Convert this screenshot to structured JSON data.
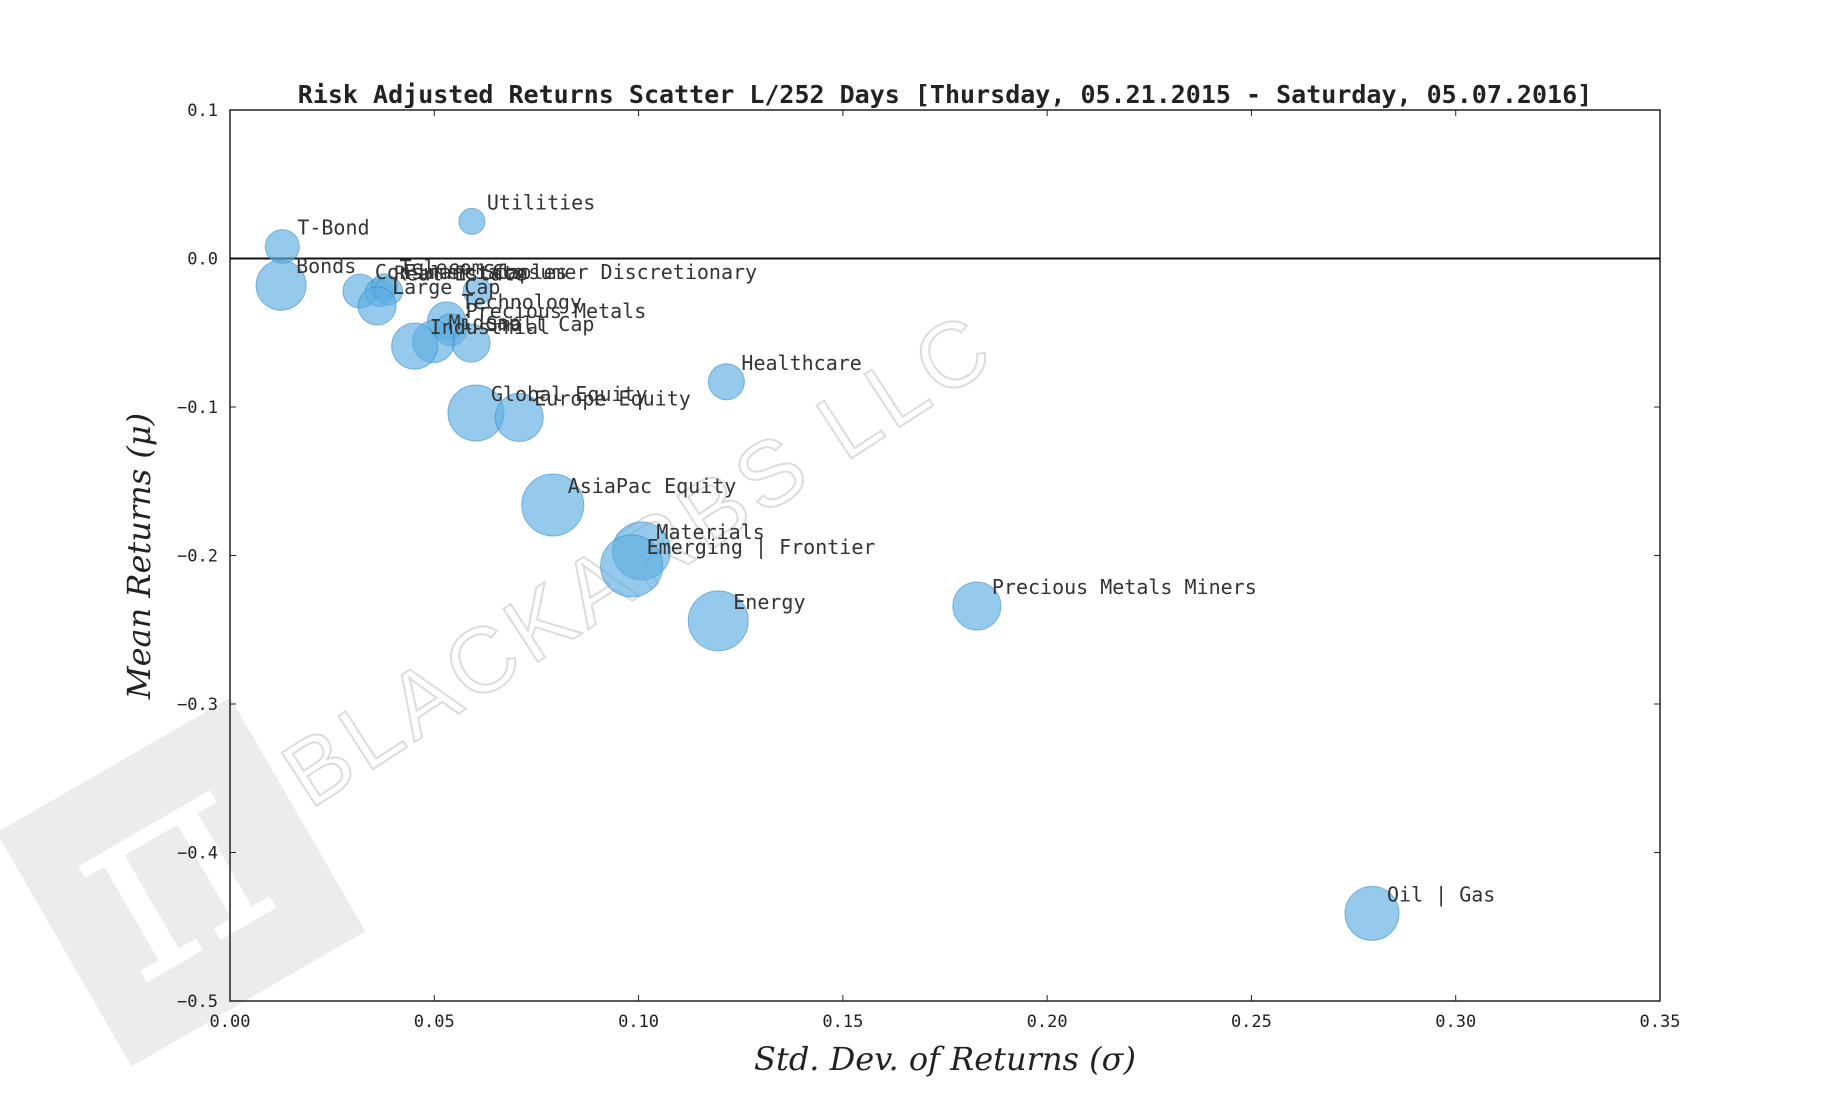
{
  "chart_data": {
    "type": "scatter",
    "title": "Risk Adjusted Returns Scatter L/252 Days [Thursday, 05.21.2015 - Saturday, 05.07.2016]",
    "xlabel": "Std.  Dev.  of  Returns   (σ)",
    "ylabel": "Mean  Returns   (μ)",
    "xlim": [
      0.0,
      0.35
    ],
    "ylim": [
      -0.5,
      0.1
    ],
    "x_ticks": [
      0.0,
      0.05,
      0.1,
      0.15,
      0.2,
      0.25,
      0.3,
      0.35
    ],
    "x_tick_labels": [
      "0.00",
      "0.05",
      "0.10",
      "0.15",
      "0.20",
      "0.25",
      "0.30",
      "0.35"
    ],
    "y_ticks": [
      0.1,
      0.0,
      -0.1,
      -0.2,
      -0.3,
      -0.4,
      -0.5
    ],
    "y_tick_labels": [
      "0.1",
      "0.0",
      "−0.1",
      "−0.2",
      "−0.3",
      "−0.4",
      "−0.5"
    ],
    "zero_line": 0.0,
    "grid": false,
    "marker_color": "#5DADE2",
    "points": [
      {
        "label": "Utilities",
        "x": 0.0592,
        "y": 0.025,
        "size": 13
      },
      {
        "label": "T-Bond",
        "x": 0.0128,
        "y": 0.008,
        "size": 17
      },
      {
        "label": "Bonds",
        "x": 0.0125,
        "y": -0.018,
        "size": 25
      },
      {
        "label": "Consumer Staples",
        "x": 0.0318,
        "y": -0.022,
        "size": 17
      },
      {
        "label": "Real Estate",
        "x": 0.0365,
        "y": -0.023,
        "size": 14
      },
      {
        "label": "Telecom",
        "x": 0.0378,
        "y": -0.019,
        "size": 13
      },
      {
        "label": "Financials",
        "x": 0.0388,
        "y": -0.022,
        "size": 14
      },
      {
        "label": "Consumer Discretionary",
        "x": 0.0605,
        "y": -0.022,
        "size": 14
      },
      {
        "label": "Large Cap",
        "x": 0.036,
        "y": -0.032,
        "size": 19
      },
      {
        "label": "Technology",
        "x": 0.053,
        "y": -0.042,
        "size": 19
      },
      {
        "label": "Precious Metals",
        "x": 0.054,
        "y": -0.048,
        "size": 16
      },
      {
        "label": "Small Cap",
        "x": 0.059,
        "y": -0.057,
        "size": 19
      },
      {
        "label": "Midcap",
        "x": 0.0498,
        "y": -0.056,
        "size": 21
      },
      {
        "label": "Industrial",
        "x": 0.0452,
        "y": -0.059,
        "size": 23
      },
      {
        "label": "Healthcare",
        "x": 0.1215,
        "y": -0.083,
        "size": 18
      },
      {
        "label": "Global Equity",
        "x": 0.0602,
        "y": -0.104,
        "size": 28
      },
      {
        "label": "Europe Equity",
        "x": 0.0708,
        "y": -0.107,
        "size": 24
      },
      {
        "label": "AsiaPac Equity",
        "x": 0.079,
        "y": -0.166,
        "size": 31
      },
      {
        "label": "Materials",
        "x": 0.1007,
        "y": -0.197,
        "size": 29
      },
      {
        "label": "Emerging | Frontier",
        "x": 0.0983,
        "y": -0.207,
        "size": 31
      },
      {
        "label": "Energy",
        "x": 0.1195,
        "y": -0.244,
        "size": 30
      },
      {
        "label": "Precious Metals Miners",
        "x": 0.1828,
        "y": -0.234,
        "size": 24
      },
      {
        "label": "Oil | Gas",
        "x": 0.2795,
        "y": -0.441,
        "size": 27
      }
    ],
    "watermark": {
      "text": "BLACKARBS LLC",
      "logo": "pi-logo"
    }
  }
}
